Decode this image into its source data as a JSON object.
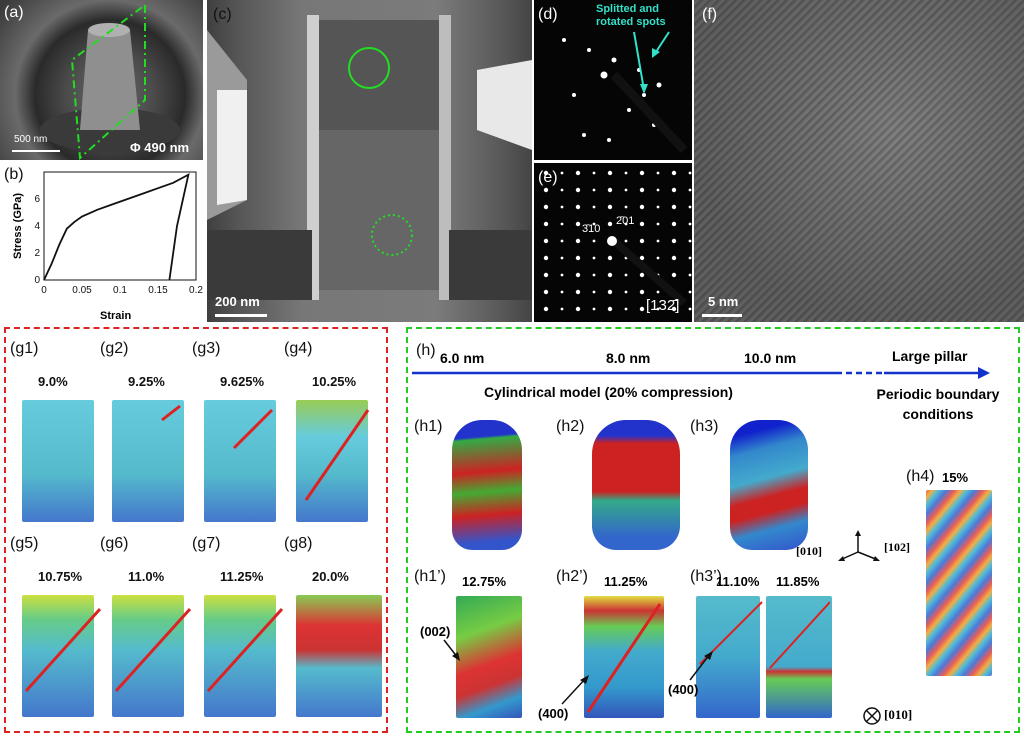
{
  "panel_a": {
    "label": "(a)",
    "scale": "500 nm",
    "diameter": "Φ 490 nm",
    "outline_color": "#22dd22"
  },
  "panel_b": {
    "label": "(b)"
  },
  "chart_data": {
    "type": "line",
    "xlabel": "Strain",
    "ylabel": "Stress (GPa)",
    "xlim": [
      0,
      0.2
    ],
    "ylim": [
      0,
      8
    ],
    "xticks": [
      "0",
      "0.05",
      "0.1",
      "0.15",
      "0.2"
    ],
    "yticks": [
      "0",
      "2",
      "4",
      "6"
    ],
    "series": [
      {
        "x": [
          0,
          0.01,
          0.02,
          0.03,
          0.04,
          0.05,
          0.07,
          0.09,
          0.11,
          0.13,
          0.15,
          0.17,
          0.18,
          0.19,
          0.175,
          0.165
        ],
        "y": [
          0,
          1.2,
          2.6,
          3.8,
          4.3,
          4.7,
          5.2,
          5.6,
          6.0,
          6.4,
          6.8,
          7.2,
          7.5,
          7.8,
          4.0,
          0
        ]
      }
    ]
  },
  "panel_c": {
    "label": "(c)",
    "scale": "200 nm"
  },
  "panel_d": {
    "label": "(d)",
    "annotation": "Splitted and\nrotated spots",
    "annotation_color": "#33e0c8"
  },
  "panel_e": {
    "label": "(e)",
    "spot1": "3̄10",
    "spot2": "2̄01",
    "zone": "[132̄]"
  },
  "panel_f": {
    "label": "(f)",
    "scale": "5 nm"
  },
  "panel_g": {
    "border_color": "#dd2222",
    "items": [
      {
        "label": "(g1)",
        "pct": "9.0%"
      },
      {
        "label": "(g2)",
        "pct": "9.25%"
      },
      {
        "label": "(g3)",
        "pct": "9.625%"
      },
      {
        "label": "(g4)",
        "pct": "10.25%"
      },
      {
        "label": "(g5)",
        "pct": "10.75%"
      },
      {
        "label": "(g6)",
        "pct": "11.0%"
      },
      {
        "label": "(g7)",
        "pct": "11.25%"
      },
      {
        "label": "(g8)",
        "pct": "20.0%"
      }
    ]
  },
  "panel_h": {
    "border_color": "#22cc22",
    "label": "(h)",
    "sizes": [
      "6.0 nm",
      "8.0 nm",
      "10.0 nm"
    ],
    "large": "Large pillar",
    "model": "Cylindrical model (20% compression)",
    "pbc": "Periodic boundary\nconditions",
    "h1": "(h1)",
    "h2": "(h2)",
    "h3": "(h3)",
    "h4": "(h4)",
    "h4pct": "15%",
    "axis1": "[010]",
    "axis2": "[102]",
    "h1p": "(h1’)",
    "h1p_pct": "12.75%",
    "h2p": "(h2’)",
    "h2p_pct": "11.25%",
    "h3p": "(h3’)",
    "h3p_pct1": "11.10%",
    "h3p_pct2": "11.85%",
    "plane002": "(002)",
    "plane400a": "(400)",
    "plane400b": "(400)",
    "view": "[010]",
    "arrow_color": "#1133cc"
  }
}
